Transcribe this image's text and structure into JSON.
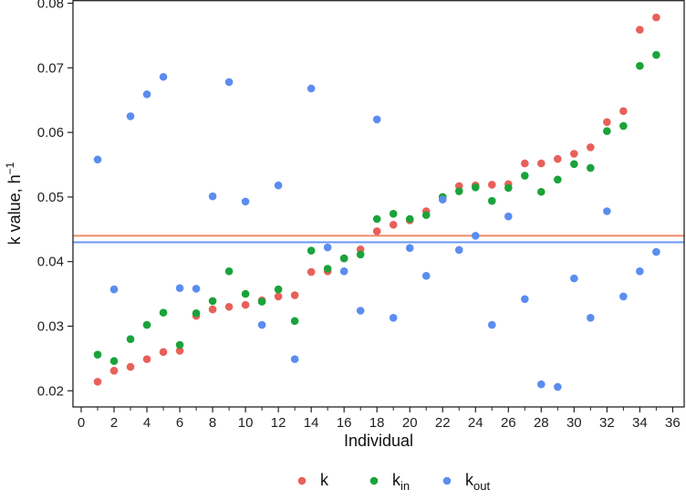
{
  "chart_data": {
    "type": "scatter",
    "xlabel": "Individual",
    "ylabel": "k value, h",
    "ylabel_superscript": "−1",
    "xlim": [
      -0.5,
      36.7
    ],
    "ylim": [
      0.0175,
      0.0805
    ],
    "x_ticks": [
      0,
      2,
      4,
      6,
      8,
      10,
      12,
      14,
      16,
      18,
      20,
      22,
      24,
      26,
      28,
      30,
      32,
      34,
      36
    ],
    "y_ticks": [
      0.02,
      0.03,
      0.04,
      0.05,
      0.06,
      0.07,
      0.08
    ],
    "y_tick_labels": [
      "0.02",
      "0.03",
      "0.04",
      "0.05",
      "0.06",
      "0.07",
      "0.08"
    ],
    "grid": false,
    "legend_position": "bottom",
    "x": [
      1,
      2,
      3,
      4,
      5,
      6,
      7,
      8,
      9,
      10,
      11,
      12,
      13,
      14,
      15,
      16,
      17,
      18,
      19,
      20,
      21,
      22,
      23,
      24,
      25,
      26,
      27,
      28,
      29,
      30,
      31,
      32,
      33,
      34,
      35
    ],
    "series": [
      {
        "name": "k",
        "legend_base": "k",
        "legend_sub": "",
        "color": "#e8605a",
        "hline": 0.044,
        "hline_color": "#ee8a68",
        "values": [
          0.0214,
          0.0231,
          0.0237,
          0.0249,
          0.026,
          0.0262,
          0.0316,
          0.0326,
          0.033,
          0.0333,
          0.034,
          0.0346,
          0.0348,
          0.0384,
          0.0385,
          0.0405,
          0.0419,
          0.0447,
          0.0457,
          0.0464,
          0.0478,
          0.05,
          0.0517,
          0.0518,
          0.0519,
          0.052,
          0.0552,
          0.0552,
          0.0559,
          0.0567,
          0.0577,
          0.0616,
          0.0633,
          0.0759,
          0.0778
        ]
      },
      {
        "name": "k_in",
        "legend_base": "k",
        "legend_sub": "in",
        "color": "#1aa33a",
        "values": [
          0.0256,
          0.0246,
          0.028,
          0.0302,
          0.0321,
          0.0271,
          0.032,
          0.0339,
          0.0385,
          0.035,
          0.0338,
          0.0357,
          0.0308,
          0.0417,
          0.0389,
          0.0405,
          0.0411,
          0.0466,
          0.0474,
          0.0466,
          0.0472,
          0.05,
          0.0509,
          0.0515,
          0.0494,
          0.0514,
          0.0533,
          0.0508,
          0.0527,
          0.0551,
          0.0545,
          0.0602,
          0.061,
          0.0703,
          0.072
        ]
      },
      {
        "name": "k_out",
        "legend_base": "k",
        "legend_sub": "out",
        "color": "#5b8df0",
        "hline": 0.043,
        "hline_color": "#6a96f2",
        "values": [
          0.0558,
          0.0357,
          0.0625,
          0.0659,
          0.0686,
          0.0359,
          0.0358,
          0.0501,
          0.0678,
          0.0493,
          0.0302,
          0.0518,
          0.0249,
          0.0668,
          0.0422,
          0.0385,
          0.0324,
          0.062,
          0.0313,
          0.0421,
          0.0378,
          0.0496,
          0.0418,
          0.044,
          0.0302,
          0.047,
          0.0342,
          0.021,
          0.0206,
          0.0374,
          0.0313,
          0.0478,
          0.0346,
          0.0385,
          0.0415
        ]
      }
    ]
  }
}
